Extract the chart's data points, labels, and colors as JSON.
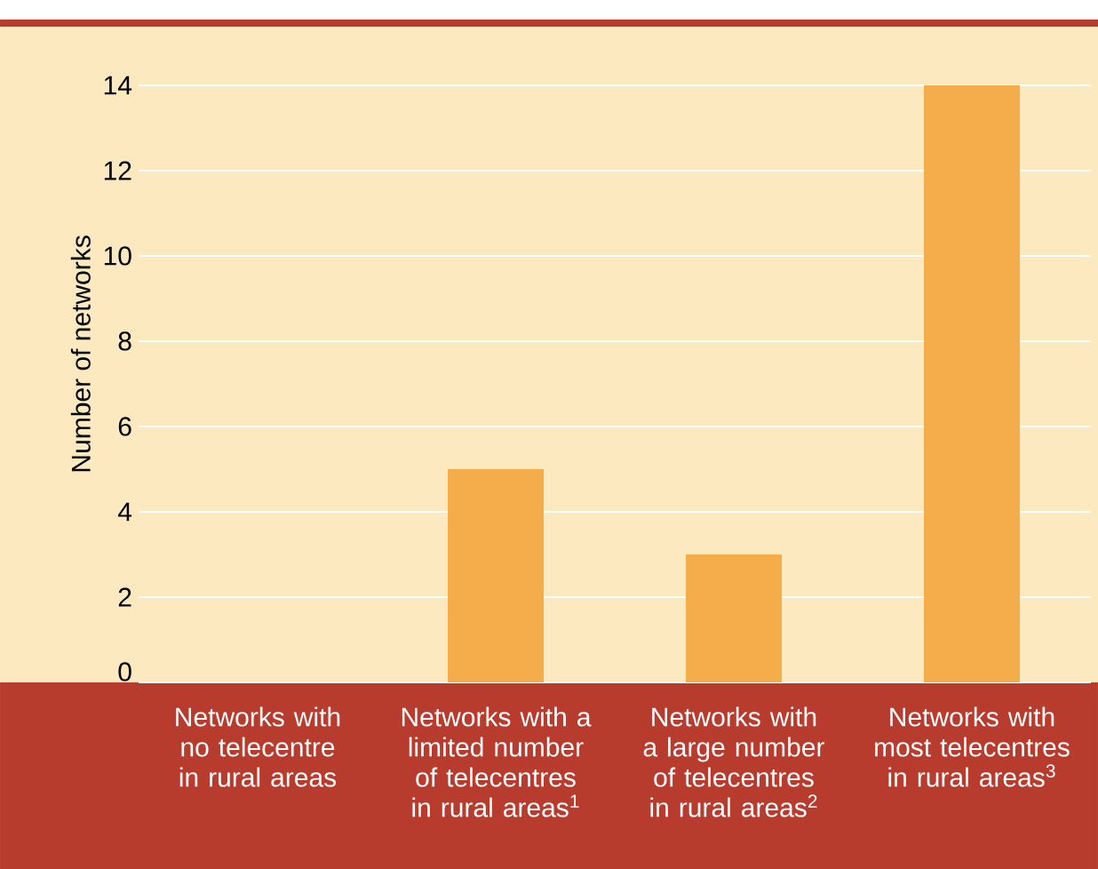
{
  "chart_data": {
    "type": "bar",
    "ylabel": "Number of networks",
    "categories": [
      "Networks with no telecentre in rural areas",
      "Networks with a limited number of telecentres in rural areas$^{1}$",
      "Networks with a large number of telecentres in rural areas$^{2}$",
      "Networks with most telecentres in rural areas$^{3}$"
    ],
    "values": [
      0,
      5,
      3,
      14
    ],
    "color": "#f5ad4c",
    "ylim": [
      0,
      15.4
    ],
    "yticks": [
      0,
      2,
      4,
      6,
      8,
      10,
      12,
      14
    ],
    "grid": "y"
  }
}
